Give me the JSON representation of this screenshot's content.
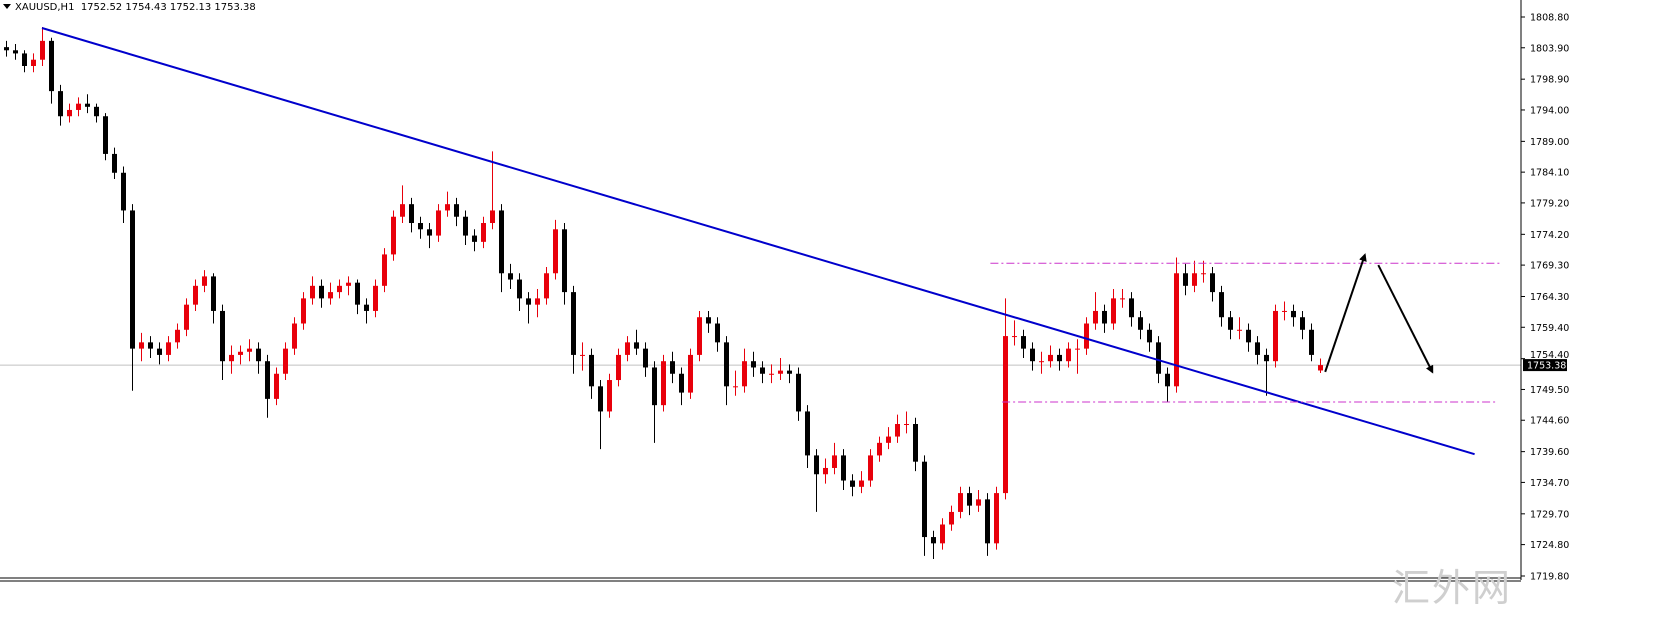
{
  "header": {
    "symbol": "XAUUSD,H1",
    "ohlc": "1752.52 1754.43 1752.13 1753.38"
  },
  "watermark": "汇外网",
  "colors": {
    "bull": "#e8000b",
    "bear": "#000000",
    "trendline": "#0000cc",
    "range_lines": "#cc33cc",
    "arrows": "#000000",
    "price_line": "#c0c0c0"
  },
  "chart_data": {
    "type": "candlestick",
    "title": "",
    "symbol": "XAUUSD",
    "timeframe": "H1",
    "ylim": [
      1719.8,
      1808.8
    ],
    "y_ticks": [
      "1808.80",
      "1803.90",
      "1798.90",
      "1794.00",
      "1789.00",
      "1784.10",
      "1779.20",
      "1774.20",
      "1769.30",
      "1764.30",
      "1759.40",
      "1754.40",
      "1749.50",
      "1744.60",
      "1739.60",
      "1734.70",
      "1729.70",
      "1724.80",
      "1719.80"
    ],
    "current_price": "1753.38",
    "candle_format": [
      "open",
      "high",
      "low",
      "close"
    ],
    "candles": [
      [
        1804,
        1805,
        1802.5,
        1803.5
      ],
      [
        1803.5,
        1804.5,
        1802,
        1803
      ],
      [
        1803,
        1803.5,
        1800,
        1801
      ],
      [
        1801,
        1803,
        1800,
        1802
      ],
      [
        1802,
        1807.2,
        1801,
        1805
      ],
      [
        1805,
        1805.5,
        1795,
        1797
      ],
      [
        1797,
        1798,
        1791.5,
        1793
      ],
      [
        1793,
        1795,
        1792,
        1794
      ],
      [
        1794,
        1796,
        1793,
        1795
      ],
      [
        1795,
        1796.5,
        1793.5,
        1794.5
      ],
      [
        1794.5,
        1795,
        1792,
        1793
      ],
      [
        1793,
        1793.5,
        1786,
        1787
      ],
      [
        1787,
        1788,
        1783,
        1784
      ],
      [
        1784,
        1785,
        1776,
        1778
      ],
      [
        1778,
        1779,
        1749.3,
        1756
      ],
      [
        1756,
        1758.5,
        1754,
        1757
      ],
      [
        1757,
        1758,
        1754.5,
        1756
      ],
      [
        1756,
        1757,
        1753.5,
        1755
      ],
      [
        1755,
        1758,
        1754,
        1757
      ],
      [
        1757,
        1760,
        1756,
        1759
      ],
      [
        1759,
        1764,
        1758,
        1763
      ],
      [
        1763,
        1767,
        1762,
        1766
      ],
      [
        1766,
        1768.5,
        1765,
        1767.5
      ],
      [
        1767.5,
        1768,
        1760,
        1762
      ],
      [
        1762,
        1763,
        1751,
        1754
      ],
      [
        1754,
        1756.5,
        1752,
        1755
      ],
      [
        1755,
        1756.5,
        1753.5,
        1755.5
      ],
      [
        1755.5,
        1757.5,
        1754,
        1756
      ],
      [
        1756,
        1757,
        1752,
        1754
      ],
      [
        1754,
        1755,
        1745,
        1748
      ],
      [
        1748,
        1753,
        1747,
        1752
      ],
      [
        1752,
        1757,
        1751,
        1756
      ],
      [
        1756,
        1761,
        1755,
        1760
      ],
      [
        1760,
        1765,
        1759,
        1764
      ],
      [
        1764,
        1767.5,
        1763,
        1766
      ],
      [
        1766,
        1767,
        1762.5,
        1764
      ],
      [
        1764,
        1766.5,
        1763,
        1765
      ],
      [
        1765,
        1767,
        1764,
        1766
      ],
      [
        1766,
        1767.5,
        1764.5,
        1766.5
      ],
      [
        1766.5,
        1767,
        1761.5,
        1763
      ],
      [
        1763,
        1764,
        1760,
        1762
      ],
      [
        1762,
        1767,
        1761,
        1766
      ],
      [
        1766,
        1772,
        1765,
        1771
      ],
      [
        1771,
        1778,
        1770,
        1777
      ],
      [
        1777,
        1782,
        1776,
        1779
      ],
      [
        1779,
        1780,
        1774.5,
        1776
      ],
      [
        1776,
        1777,
        1773.5,
        1775
      ],
      [
        1775,
        1776,
        1772,
        1774
      ],
      [
        1774,
        1779,
        1773,
        1778
      ],
      [
        1778,
        1781,
        1777,
        1779
      ],
      [
        1779,
        1780,
        1775.5,
        1777
      ],
      [
        1777,
        1778,
        1772.5,
        1774
      ],
      [
        1774,
        1775,
        1771.5,
        1773
      ],
      [
        1773,
        1777,
        1772,
        1776
      ],
      [
        1776,
        1787.4,
        1775,
        1778
      ],
      [
        1778,
        1779,
        1765,
        1768
      ],
      [
        1768,
        1769.5,
        1765.5,
        1767
      ],
      [
        1767,
        1768,
        1762,
        1764
      ],
      [
        1764,
        1765,
        1760,
        1763
      ],
      [
        1763,
        1765.5,
        1761,
        1764
      ],
      [
        1764,
        1769,
        1763,
        1768
      ],
      [
        1768,
        1776.5,
        1767,
        1775
      ],
      [
        1775,
        1776,
        1763,
        1765
      ],
      [
        1765,
        1766,
        1752,
        1755
      ],
      [
        1755,
        1757,
        1752.5,
        1755
      ],
      [
        1755,
        1756,
        1748,
        1750
      ],
      [
        1750,
        1751,
        1740,
        1746
      ],
      [
        1746,
        1752,
        1745,
        1751
      ],
      [
        1751,
        1756,
        1750,
        1755
      ],
      [
        1755,
        1758,
        1754,
        1757
      ],
      [
        1757,
        1759,
        1755,
        1756
      ],
      [
        1756,
        1757,
        1751.5,
        1753
      ],
      [
        1753,
        1754,
        1741,
        1747
      ],
      [
        1747,
        1755,
        1746,
        1754
      ],
      [
        1754,
        1755.5,
        1750.5,
        1752
      ],
      [
        1752,
        1753,
        1747,
        1749
      ],
      [
        1749,
        1756,
        1748,
        1755
      ],
      [
        1755,
        1762,
        1754,
        1761
      ],
      [
        1761,
        1762,
        1758.5,
        1760
      ],
      [
        1760,
        1761,
        1755.5,
        1757
      ],
      [
        1757,
        1758,
        1747,
        1750
      ],
      [
        1750,
        1752.5,
        1748.5,
        1750
      ],
      [
        1750,
        1756,
        1749,
        1754
      ],
      [
        1754,
        1755.5,
        1751.5,
        1753
      ],
      [
        1753,
        1754,
        1750.5,
        1752
      ],
      [
        1752,
        1753.5,
        1750.5,
        1752
      ],
      [
        1752,
        1754.5,
        1751,
        1752.5
      ],
      [
        1752.5,
        1753.5,
        1750.5,
        1752
      ],
      [
        1752,
        1753,
        1744.5,
        1746
      ],
      [
        1746,
        1747,
        1737,
        1739
      ],
      [
        1739,
        1740,
        1730,
        1736
      ],
      [
        1736,
        1738.5,
        1734.5,
        1737
      ],
      [
        1737,
        1741,
        1736,
        1739
      ],
      [
        1739,
        1740,
        1733.5,
        1735
      ],
      [
        1735,
        1736,
        1732.5,
        1734
      ],
      [
        1734,
        1736.5,
        1733,
        1735
      ],
      [
        1735,
        1740,
        1734,
        1739
      ],
      [
        1739,
        1742,
        1738,
        1741
      ],
      [
        1741,
        1743.5,
        1740,
        1742
      ],
      [
        1742,
        1745.5,
        1741,
        1744
      ],
      [
        1744,
        1746,
        1742.5,
        1744
      ],
      [
        1744,
        1745,
        1736.5,
        1738
      ],
      [
        1738,
        1739,
        1723,
        1726
      ],
      [
        1726,
        1727,
        1722.5,
        1725
      ],
      [
        1725,
        1729,
        1724,
        1728
      ],
      [
        1728,
        1731,
        1727,
        1730
      ],
      [
        1730,
        1734,
        1729,
        1733
      ],
      [
        1733,
        1734,
        1729.5,
        1731
      ],
      [
        1731,
        1733.5,
        1730,
        1732
      ],
      [
        1732,
        1733,
        1723,
        1725
      ],
      [
        1725,
        1734,
        1724,
        1733
      ],
      [
        1733,
        1764,
        1732,
        1758
      ],
      [
        1758,
        1760.5,
        1756.5,
        1758
      ],
      [
        1758,
        1759,
        1754.5,
        1756
      ],
      [
        1756,
        1757,
        1752.5,
        1754
      ],
      [
        1754,
        1755.5,
        1752,
        1754
      ],
      [
        1754,
        1756.5,
        1753,
        1755
      ],
      [
        1755,
        1756,
        1752.5,
        1754
      ],
      [
        1754,
        1757,
        1753,
        1756
      ],
      [
        1756,
        1757.5,
        1752,
        1756
      ],
      [
        1756,
        1761,
        1755,
        1760
      ],
      [
        1760,
        1765,
        1759,
        1762
      ],
      [
        1762,
        1763,
        1758.5,
        1760
      ],
      [
        1760,
        1765.5,
        1759,
        1764
      ],
      [
        1764,
        1765.5,
        1762.5,
        1764
      ],
      [
        1764,
        1765,
        1759.5,
        1761
      ],
      [
        1761,
        1762,
        1757.5,
        1759
      ],
      [
        1759,
        1760,
        1755.5,
        1757
      ],
      [
        1757,
        1758,
        1750.5,
        1752
      ],
      [
        1752,
        1753,
        1747.5,
        1750
      ],
      [
        1750,
        1770.5,
        1749,
        1768
      ],
      [
        1768,
        1769.5,
        1764.5,
        1766
      ],
      [
        1766,
        1770,
        1765,
        1768
      ],
      [
        1768,
        1770,
        1766.5,
        1768
      ],
      [
        1768,
        1769,
        1763.5,
        1765
      ],
      [
        1765,
        1766,
        1759.5,
        1761
      ],
      [
        1761,
        1762,
        1757.5,
        1759
      ],
      [
        1759,
        1761,
        1757.5,
        1759
      ],
      [
        1759,
        1760,
        1755.5,
        1757
      ],
      [
        1757,
        1758,
        1753.5,
        1755
      ],
      [
        1755,
        1756,
        1748.5,
        1754
      ],
      [
        1754,
        1763,
        1753,
        1762
      ],
      [
        1762,
        1763.5,
        1760.5,
        1762
      ],
      [
        1762,
        1763,
        1759.5,
        1761
      ],
      [
        1761,
        1762,
        1757.5,
        1759
      ],
      [
        1759,
        1760,
        1754,
        1755
      ],
      [
        1752.52,
        1754.43,
        1752.13,
        1753.38
      ]
    ],
    "trendline": {
      "from": [
        4,
        1807.05
      ],
      "to": [
        163.4,
        1739.2
      ]
    },
    "range_lines": [
      {
        "from": [
          109.6,
          1769.6
        ],
        "to": [
          166.2,
          1769.6
        ]
      },
      {
        "from": [
          110.9,
          1747.5
        ],
        "to": [
          165.7,
          1747.5
        ]
      }
    ],
    "arrows": [
      {
        "from": [
          146.8,
          1752.3
        ],
        "to": [
          151.2,
          1770.9
        ]
      },
      {
        "from": [
          152.7,
          1769.3
        ],
        "to": [
          158.7,
          1752.3
        ]
      }
    ],
    "grid": false
  }
}
